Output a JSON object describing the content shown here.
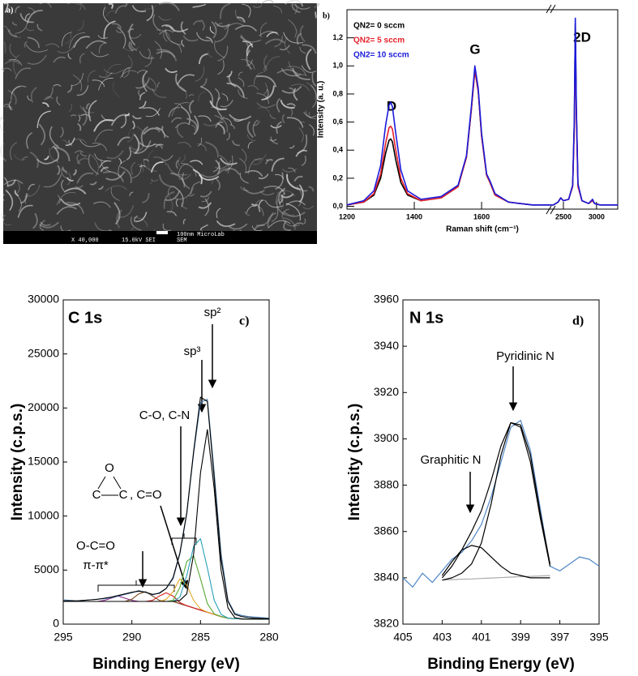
{
  "sem_image": {
    "panel_label": "a)",
    "scale_bar": "100nm MicroLab",
    "magnification": "X 40,000",
    "settings": "15.0kV SEI",
    "mode": "SEM"
  },
  "chart_data": [
    {
      "type": "line",
      "panel_label": "b)",
      "xlabel": "Raman shift (cm⁻¹)",
      "ylabel": "Intensity (a. u.)",
      "x": [
        1200,
        1250,
        1280,
        1300,
        1315,
        1325,
        1330,
        1335,
        1345,
        1360,
        1380,
        1420,
        1480,
        1530,
        1555,
        1570,
        1580,
        1590,
        1600,
        1615,
        1625,
        1640,
        1680,
        1750,
        2350,
        2420,
        2460,
        2500,
        2580,
        2640,
        2665,
        2680,
        2695,
        2720,
        2780,
        2880,
        2940,
        2970,
        3050,
        3200,
        3320
      ],
      "series": [
        {
          "name": "QN2= 0 sccm",
          "color": "#000000",
          "values": [
            0.01,
            0.03,
            0.08,
            0.2,
            0.38,
            0.47,
            0.48,
            0.46,
            0.33,
            0.17,
            0.08,
            0.04,
            0.06,
            0.14,
            0.35,
            0.7,
            0.97,
            0.82,
            0.5,
            0.22,
            0.17,
            0.08,
            0.03,
            0.01,
            0.01,
            0.03,
            0.06,
            0.04,
            0.05,
            0.15,
            0.6,
            1.3,
            0.7,
            0.15,
            0.04,
            0.02,
            0.04,
            0.02,
            0.01,
            0.01,
            0.01
          ]
        },
        {
          "name": "QN2= 5 sccm",
          "color": "#e8202a",
          "values": [
            0.01,
            0.03,
            0.09,
            0.23,
            0.45,
            0.56,
            0.57,
            0.55,
            0.4,
            0.2,
            0.09,
            0.04,
            0.06,
            0.14,
            0.35,
            0.7,
            0.97,
            0.82,
            0.5,
            0.22,
            0.17,
            0.08,
            0.03,
            0.01,
            0.01,
            0.03,
            0.06,
            0.04,
            0.05,
            0.14,
            0.55,
            1.2,
            0.65,
            0.14,
            0.04,
            0.02,
            0.04,
            0.02,
            0.01,
            0.01,
            0.01
          ]
        },
        {
          "name": "QN2= 10 sccm",
          "color": "#1a1adb",
          "values": [
            0.01,
            0.04,
            0.11,
            0.29,
            0.58,
            0.72,
            0.74,
            0.71,
            0.52,
            0.26,
            0.11,
            0.05,
            0.07,
            0.15,
            0.36,
            0.72,
            1.0,
            0.84,
            0.52,
            0.23,
            0.18,
            0.09,
            0.03,
            0.01,
            0.01,
            0.03,
            0.06,
            0.04,
            0.05,
            0.15,
            0.62,
            1.34,
            0.72,
            0.16,
            0.04,
            0.02,
            0.05,
            0.02,
            0.01,
            0.01,
            0.01
          ]
        }
      ],
      "xlim": [
        1200,
        3320
      ],
      "x_break": [
        1807,
        2317
      ],
      "xticks": [
        1200,
        1400,
        1600,
        2500,
        3000
      ],
      "ylim": [
        -0.02,
        1.4
      ],
      "yticks": [
        {
          "value": 0,
          "label": "0,0"
        },
        {
          "value": 0.2,
          "label": "0,2"
        },
        {
          "value": 0.4,
          "label": "0,4"
        },
        {
          "value": 0.6,
          "label": "0,6"
        },
        {
          "value": 0.8,
          "label": "0,8"
        },
        {
          "value": 1.0,
          "label": "1,0"
        },
        {
          "value": 1.2,
          "label": "1,2"
        }
      ],
      "legend": "upper left",
      "annotations": [
        "D",
        "G",
        "2D"
      ]
    },
    {
      "type": "line",
      "title": "C 1s",
      "panel_label": "c)",
      "xlabel": "Binding Energy (eV)",
      "ylabel": "Intensity (c.p.s.)",
      "x": [
        295,
        294.5,
        294,
        293.5,
        293,
        292.5,
        292,
        291.5,
        291,
        290.5,
        290,
        289.5,
        289,
        288.5,
        288,
        287.5,
        287,
        286.5,
        286,
        285.5,
        285,
        284.5,
        284,
        283.5,
        283,
        282.5,
        282,
        281.5,
        281,
        280.5,
        280
      ],
      "series": [
        {
          "color": "#e08a2a",
          "values": [
            2100,
            2100,
            2100,
            2100,
            2100,
            2100,
            2100,
            2100,
            2100,
            2100,
            2100,
            2100,
            2100,
            2100,
            2100,
            2100,
            2100,
            1900,
            1700,
            1500,
            1300,
            1100,
            900,
            700,
            550,
            500,
            480,
            460,
            460,
            460,
            460
          ]
        },
        {
          "color": "#8a2a8a",
          "values": [
            2100,
            2100,
            2100,
            2100,
            2100,
            2100,
            2200,
            2400,
            2600,
            2400,
            2200,
            2100,
            2100,
            2100,
            2100,
            2100,
            2100,
            1900,
            1700,
            1500,
            1300,
            1100,
            900,
            700,
            550,
            500,
            480,
            460,
            460,
            460,
            460
          ]
        },
        {
          "color": "#7a4a20",
          "values": [
            2100,
            2100,
            2100,
            2100,
            2100,
            2100,
            2100,
            2100,
            2100,
            2100,
            2300,
            2800,
            3000,
            2600,
            2200,
            2100,
            2100,
            1900,
            1700,
            1500,
            1300,
            1100,
            900,
            700,
            550,
            500,
            480,
            460,
            460,
            460,
            460
          ]
        },
        {
          "color": "#d62020",
          "values": [
            2100,
            2100,
            2100,
            2100,
            2100,
            2100,
            2100,
            2100,
            2100,
            2100,
            2100,
            2100,
            2100,
            2200,
            2600,
            2900,
            2600,
            2000,
            1700,
            1500,
            1300,
            1100,
            900,
            700,
            550,
            500,
            480,
            460,
            460,
            460,
            460
          ]
        },
        {
          "color": "#e3a82a",
          "values": [
            2100,
            2100,
            2100,
            2100,
            2100,
            2100,
            2100,
            2100,
            2100,
            2100,
            2100,
            2100,
            2100,
            2100,
            2100,
            2300,
            3000,
            4200,
            3600,
            2200,
            1400,
            1100,
            900,
            700,
            550,
            500,
            480,
            460,
            460,
            460,
            460
          ]
        },
        {
          "color": "#58a832",
          "values": [
            2100,
            2100,
            2100,
            2100,
            2100,
            2100,
            2100,
            2100,
            2100,
            2100,
            2100,
            2100,
            2100,
            2100,
            2100,
            2100,
            2200,
            3400,
            5800,
            6300,
            4200,
            1900,
            950,
            700,
            550,
            500,
            480,
            460,
            460,
            460,
            460
          ]
        },
        {
          "color": "#2aa0b8",
          "values": [
            2100,
            2100,
            2100,
            2100,
            2100,
            2100,
            2100,
            2100,
            2100,
            2100,
            2100,
            2100,
            2100,
            2100,
            2100,
            2100,
            2100,
            2500,
            4500,
            7200,
            7900,
            5200,
            2200,
            900,
            560,
            500,
            480,
            460,
            460,
            460,
            460
          ]
        },
        {
          "color": "#000000",
          "values": [
            2100,
            2100,
            2100,
            2100,
            2100,
            2100,
            2100,
            2100,
            2100,
            2100,
            2100,
            2100,
            2100,
            2100,
            2100,
            2100,
            2100,
            2200,
            2800,
            6500,
            14000,
            18000,
            12500,
            5000,
            1500,
            600,
            480,
            460,
            460,
            460,
            460
          ]
        },
        {
          "color": "#4a7fb5",
          "values": [
            2250,
            2200,
            2150,
            2200,
            2250,
            2300,
            2350,
            2450,
            2600,
            2750,
            2900,
            3100,
            2950,
            2700,
            2900,
            3300,
            4200,
            6500,
            10200,
            15800,
            20500,
            20800,
            14000,
            6500,
            2200,
            1000,
            800,
            700,
            650,
            600,
            550
          ]
        },
        {
          "color": "#000000",
          "values": [
            2150,
            2150,
            2150,
            2200,
            2250,
            2300,
            2400,
            2500,
            2650,
            2800,
            2950,
            3050,
            2950,
            2750,
            2850,
            3300,
            4300,
            6600,
            10300,
            16000,
            21000,
            20600,
            13500,
            6000,
            2100,
            900,
            700,
            600,
            550,
            520,
            500
          ]
        }
      ],
      "xlim": [
        295,
        280
      ],
      "xticks": [
        295,
        290,
        285,
        280
      ],
      "ylim": [
        0,
        30000
      ],
      "yticks": [
        0,
        5000,
        10000,
        15000,
        20000,
        25000,
        30000
      ],
      "annotations": [
        "sp²",
        "sp³",
        "C-O, C-N",
        "O",
        "C",
        "C",
        ", C=O",
        "O-C=O",
        "π-π*"
      ]
    },
    {
      "type": "line",
      "title": "N 1s",
      "panel_label": "d)",
      "xlabel": "Binding Energy (eV)",
      "ylabel": "Intensity (c.p.s.)",
      "x": [
        405,
        404.5,
        404,
        403.5,
        403,
        402.5,
        402,
        401.5,
        401,
        400.5,
        400,
        399.5,
        399,
        398.5,
        398,
        397.5,
        397,
        396.5,
        396,
        395.5,
        395
      ],
      "series": [
        {
          "color": "#4f86c6",
          "values": [
            3840,
            3836,
            3842,
            3838,
            3843,
            3848,
            3851,
            3856,
            3863,
            3875,
            3890,
            3905,
            3908,
            3895,
            3870,
            3845,
            3843,
            3846,
            3849,
            3848,
            3845
          ]
        },
        {
          "color": "#aaaaaa",
          "values": [
            null,
            null,
            null,
            null,
            3839.0,
            3839.2,
            3839.4,
            3839.5,
            3839.7,
            3839.9,
            3840.1,
            3840.3,
            3840.5,
            3840.6,
            3840.8,
            3841.0,
            null,
            null,
            null,
            null,
            null
          ]
        },
        {
          "color": "#000000",
          "values": [
            null,
            null,
            null,
            null,
            3841,
            3847,
            3852,
            3854,
            3853,
            3849,
            3845,
            3842,
            3841,
            3840,
            3840,
            3840,
            null,
            null,
            null,
            null,
            null
          ]
        },
        {
          "color": "#000000",
          "values": [
            null,
            null,
            null,
            null,
            3839,
            3840,
            3842,
            3846,
            3855,
            3872,
            3893,
            3907,
            3905,
            3890,
            3866,
            3845,
            null,
            null,
            null,
            null,
            null
          ]
        },
        {
          "color": "#000000",
          "values": [
            null,
            null,
            null,
            null,
            3840,
            3845,
            3852,
            3860,
            3869,
            3882,
            3897,
            3907,
            3906,
            3893,
            3868,
            3846,
            null,
            null,
            null,
            null,
            null
          ]
        }
      ],
      "xlim": [
        405,
        395
      ],
      "xticks": [
        405,
        403,
        401,
        399,
        397,
        395
      ],
      "ylim": [
        3820,
        3960
      ],
      "yticks": [
        3820,
        3840,
        3860,
        3880,
        3900,
        3920,
        3940,
        3960
      ],
      "annotations": [
        "Pyridinic N",
        "Graphitic N"
      ]
    }
  ]
}
